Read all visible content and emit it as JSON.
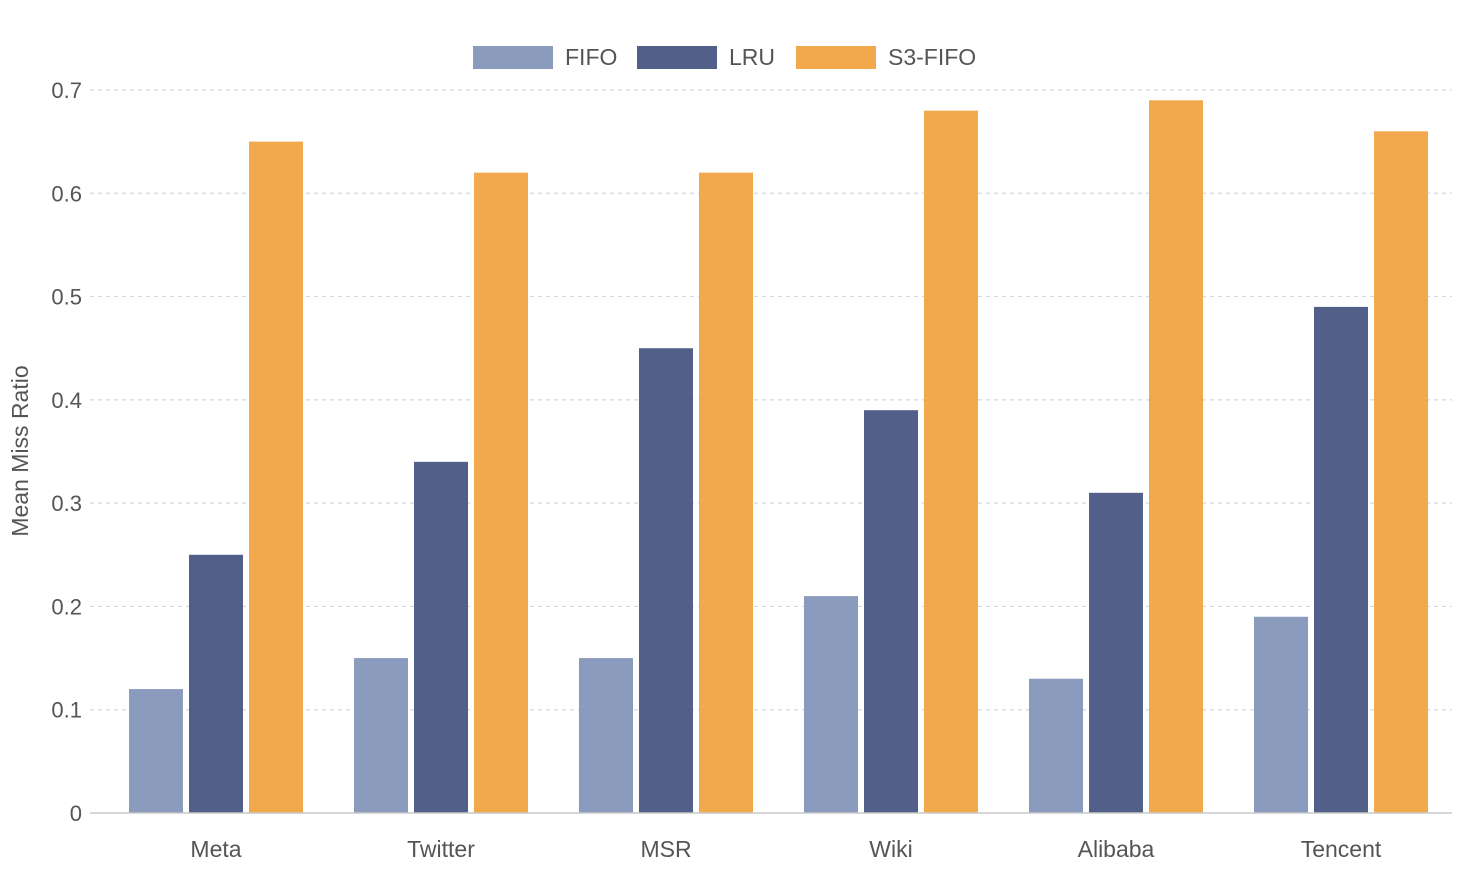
{
  "chart_data": {
    "type": "bar",
    "title": "",
    "xlabel": "",
    "ylabel": "Mean Miss Ratio",
    "ylim": [
      0,
      0.7
    ],
    "yticks": [
      "0",
      "0.1",
      "0.2",
      "0.3",
      "0.4",
      "0.5",
      "0.6",
      "0.7"
    ],
    "categories": [
      "Meta",
      "Twitter",
      "MSR",
      "Wiki",
      "Alibaba",
      "Tencent"
    ],
    "series": [
      {
        "name": "FIFO",
        "color": "#8b9bbd",
        "values": [
          0.12,
          0.15,
          0.15,
          0.21,
          0.13,
          0.19
        ]
      },
      {
        "name": "LRU",
        "color": "#525f88",
        "values": [
          0.25,
          0.34,
          0.45,
          0.39,
          0.31,
          0.49
        ]
      },
      {
        "name": "S3-FIFO",
        "color": "#f2a94d",
        "values": [
          0.65,
          0.62,
          0.62,
          0.68,
          0.69,
          0.66
        ]
      }
    ],
    "grid": true,
    "legend_position": "top-center"
  }
}
